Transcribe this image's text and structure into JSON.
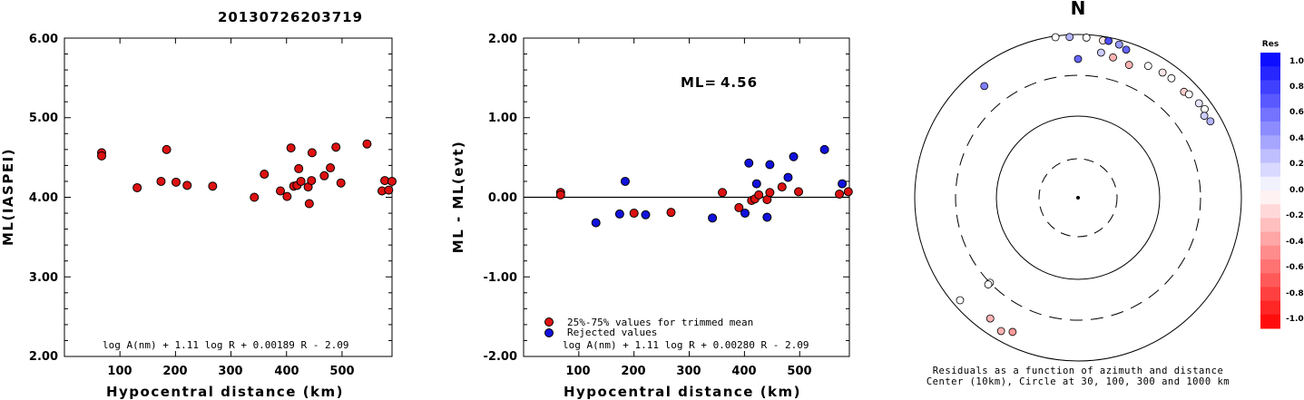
{
  "event_id": "20130726203719",
  "chart_data": [
    {
      "type": "scatter",
      "name": "ml-vs-distance",
      "xlabel": "Hypocentral distance (km)",
      "ylabel": "ML(IASPEI)",
      "xlim": [
        0,
        590
      ],
      "ylim": [
        2.0,
        6.0
      ],
      "xticks": [
        "100",
        "200",
        "300",
        "400",
        "500"
      ],
      "yticks": [
        "6.00",
        "5.00",
        "4.00",
        "3.00",
        "2.00"
      ],
      "formula": "log A(nm) + 1.11 log R + 0.00189 R - 2.09",
      "points": [
        {
          "x": 67,
          "y": 4.56
        },
        {
          "x": 67,
          "y": 4.52
        },
        {
          "x": 131,
          "y": 4.12
        },
        {
          "x": 174,
          "y": 4.2
        },
        {
          "x": 184,
          "y": 4.6
        },
        {
          "x": 201,
          "y": 4.19
        },
        {
          "x": 221,
          "y": 4.15
        },
        {
          "x": 267,
          "y": 4.14
        },
        {
          "x": 342,
          "y": 4.0
        },
        {
          "x": 360,
          "y": 4.29
        },
        {
          "x": 389,
          "y": 4.08
        },
        {
          "x": 401,
          "y": 4.01
        },
        {
          "x": 408,
          "y": 4.62
        },
        {
          "x": 413,
          "y": 4.14
        },
        {
          "x": 419,
          "y": 4.15
        },
        {
          "x": 422,
          "y": 4.36
        },
        {
          "x": 426,
          "y": 4.2
        },
        {
          "x": 439,
          "y": 4.13
        },
        {
          "x": 441,
          "y": 3.92
        },
        {
          "x": 445,
          "y": 4.21
        },
        {
          "x": 446,
          "y": 4.56
        },
        {
          "x": 468,
          "y": 4.27
        },
        {
          "x": 479,
          "y": 4.37
        },
        {
          "x": 489,
          "y": 4.63
        },
        {
          "x": 498,
          "y": 4.18
        },
        {
          "x": 545,
          "y": 4.67
        },
        {
          "x": 572,
          "y": 4.08
        },
        {
          "x": 577,
          "y": 4.21
        },
        {
          "x": 584,
          "y": 4.09
        },
        {
          "x": 590,
          "y": 4.2
        }
      ]
    },
    {
      "type": "scatter",
      "name": "residuals-vs-distance",
      "xlabel": "Hypocentral distance (km)",
      "ylabel": "ML - ML(evt)",
      "xlim": [
        0,
        590
      ],
      "ylim": [
        -2.0,
        2.0
      ],
      "xticks": [
        "100",
        "200",
        "300",
        "400",
        "500"
      ],
      "yticks": [
        "2.00",
        "1.00",
        "0.00",
        "-1.00",
        "-2.00"
      ],
      "annotation_label": "ML=",
      "annotation_value": "4.56",
      "formula": "log A(nm) + 1.11 log R + 0.00280 R - 2.09",
      "series": [
        {
          "name": "25%-75% values for trimmed mean",
          "color": "#dd1111",
          "points": [
            {
              "x": 67,
              "y": 0.06
            },
            {
              "x": 67,
              "y": 0.03
            },
            {
              "x": 200,
              "y": -0.2
            },
            {
              "x": 267,
              "y": -0.19
            },
            {
              "x": 360,
              "y": 0.06
            },
            {
              "x": 390,
              "y": -0.13
            },
            {
              "x": 413,
              "y": -0.04
            },
            {
              "x": 419,
              "y": -0.02
            },
            {
              "x": 426,
              "y": 0.03
            },
            {
              "x": 441,
              "y": -0.03
            },
            {
              "x": 446,
              "y": 0.06
            },
            {
              "x": 468,
              "y": 0.13
            },
            {
              "x": 498,
              "y": 0.07
            },
            {
              "x": 572,
              "y": 0.04
            },
            {
              "x": 588,
              "y": 0.07
            }
          ]
        },
        {
          "name": "Rejected values",
          "color": "#1111dd",
          "points": [
            {
              "x": 131,
              "y": -0.32
            },
            {
              "x": 174,
              "y": -0.21
            },
            {
              "x": 184,
              "y": 0.2
            },
            {
              "x": 221,
              "y": -0.22
            },
            {
              "x": 342,
              "y": -0.26
            },
            {
              "x": 401,
              "y": -0.2
            },
            {
              "x": 408,
              "y": 0.43
            },
            {
              "x": 422,
              "y": 0.17
            },
            {
              "x": 441,
              "y": -0.25
            },
            {
              "x": 446,
              "y": 0.41
            },
            {
              "x": 479,
              "y": 0.25
            },
            {
              "x": 489,
              "y": 0.51
            },
            {
              "x": 545,
              "y": 0.6
            },
            {
              "x": 577,
              "y": 0.17
            }
          ]
        }
      ]
    },
    {
      "type": "scatter",
      "name": "azimuth-distance-residuals",
      "north_label": "N",
      "caption_line1": "Residuals as a function of azimuth and distance",
      "caption_line2": "Center (10km), Circle at 30, 100, 300 and 1000 km",
      "rings_km": [
        30,
        100,
        300,
        1000
      ],
      "points": [
        {
          "az": 0,
          "dist": 580,
          "res": 0.6
        },
        {
          "az": 352,
          "dist": 980,
          "res": 0.0
        },
        {
          "az": 357,
          "dist": 960,
          "res": 0.3
        },
        {
          "az": 3,
          "dist": 950,
          "res": 0.0
        },
        {
          "az": 9,
          "dist": 930,
          "res": -0.1
        },
        {
          "az": 11,
          "dist": 940,
          "res": 0.7
        },
        {
          "az": 15,
          "dist": 920,
          "res": 0.4
        },
        {
          "az": 18,
          "dist": 870,
          "res": 0.6
        },
        {
          "az": 9,
          "dist": 720,
          "res": 0.2
        },
        {
          "az": 14,
          "dist": 680,
          "res": -0.3
        },
        {
          "az": 21,
          "dist": 640,
          "res": -0.3
        },
        {
          "az": 28,
          "dist": 760,
          "res": 0.0
        },
        {
          "az": 34,
          "dist": 790,
          "res": -0.1
        },
        {
          "az": 38,
          "dist": 800,
          "res": 0.0
        },
        {
          "az": 45,
          "dist": 770,
          "res": -0.2
        },
        {
          "az": 47,
          "dist": 800,
          "res": 0.0
        },
        {
          "az": 52,
          "dist": 830,
          "res": 0.1
        },
        {
          "az": 55,
          "dist": 850,
          "res": 0.0
        },
        {
          "az": 57,
          "dist": 780,
          "res": 0.2
        },
        {
          "az": 60,
          "dist": 820,
          "res": 0.3
        },
        {
          "az": 320,
          "dist": 700,
          "res": 0.5
        },
        {
          "az": 226,
          "dist": 300,
          "res": 0.0
        },
        {
          "az": 226,
          "dist": 340,
          "res": 0.0
        },
        {
          "az": 229,
          "dist": 880,
          "res": 0.0
        },
        {
          "az": 216,
          "dist": 760,
          "res": -0.3
        },
        {
          "az": 206,
          "dist": 760,
          "res": -0.4
        },
        {
          "az": 210,
          "dist": 840,
          "res": -0.3
        }
      ]
    }
  ],
  "colorbar": {
    "title": "Res",
    "labels": [
      "1.0",
      "0.8",
      "0.6",
      "0.4",
      "0.2",
      "0.0",
      "-0.2",
      "-0.4",
      "-0.6",
      "-0.8",
      "-1.0"
    ]
  }
}
